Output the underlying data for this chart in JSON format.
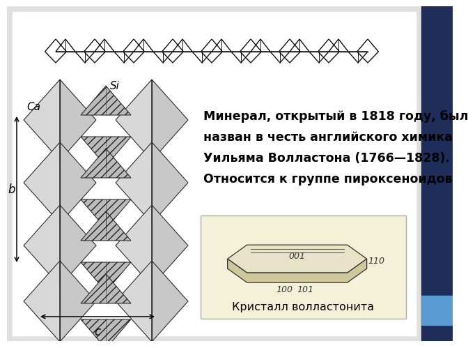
{
  "slide_bg": "#ffffff",
  "navy_color": "#1e2d5a",
  "light_blue_color": "#5b9bd5",
  "text_lines": [
    "Минерал, открытый в 1818 году, был",
    "назван в честь английского химика",
    "Уильяма Волластона (1766—1828).",
    "Относится к группе пироксеноидов"
  ],
  "crystal_caption": "Кристалл волластонита",
  "crystal_bg": "#f5f0d8",
  "label_si": "Si",
  "label_ca": "Ca",
  "label_b": "b",
  "label_c": "c"
}
